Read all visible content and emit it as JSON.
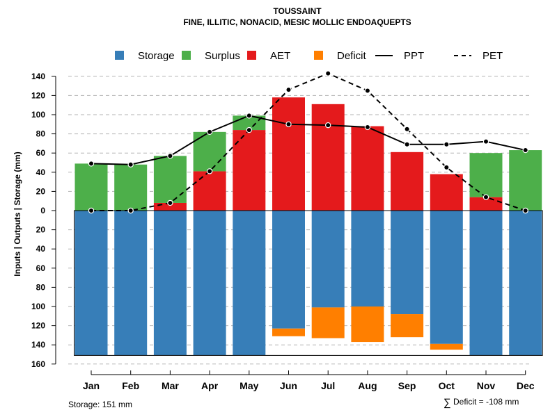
{
  "chart_data": {
    "type": "bar",
    "title": "TOUSSAINT",
    "subtitle": "FINE, ILLITIC, NONACID, MESIC MOLLIC ENDOAQUEPTS",
    "ylabel": "Inputs | Outputs | Storage    (mm)",
    "categories": [
      "Jan",
      "Feb",
      "Mar",
      "Apr",
      "May",
      "Jun",
      "Jul",
      "Aug",
      "Sep",
      "Oct",
      "Nov",
      "Dec"
    ],
    "ylim": [
      -160,
      150
    ],
    "yticks": [
      140,
      120,
      100,
      80,
      60,
      40,
      20,
      0,
      -20,
      -40,
      -60,
      -80,
      -100,
      -120,
      -140,
      -160
    ],
    "ytick_labels": [
      "140",
      "120",
      "100",
      "80",
      "60",
      "40",
      "20",
      "0",
      "20",
      "40",
      "60",
      "80",
      "100",
      "120",
      "140",
      "160"
    ],
    "grid": true,
    "colors": {
      "storage": "#377eb8",
      "surplus": "#4daf4a",
      "aet": "#e41a1c",
      "deficit": "#ff7f00",
      "ppt": "#000000",
      "pet": "#000000"
    },
    "legend": [
      {
        "key": "storage",
        "label": "Storage",
        "kind": "box"
      },
      {
        "key": "surplus",
        "label": "Surplus",
        "kind": "box"
      },
      {
        "key": "aet",
        "label": "AET",
        "kind": "box"
      },
      {
        "key": "deficit",
        "label": "Deficit",
        "kind": "box"
      },
      {
        "key": "ppt",
        "label": "PPT",
        "kind": "solid"
      },
      {
        "key": "pet",
        "label": "PET",
        "kind": "dash"
      }
    ],
    "series": [
      {
        "name": "AET",
        "values": [
          0,
          0,
          8,
          41,
          84,
          118,
          111,
          88,
          61,
          38,
          14,
          0
        ]
      },
      {
        "name": "Surplus",
        "values": [
          49,
          48,
          49,
          41,
          15,
          0,
          0,
          0,
          0,
          0,
          46,
          63
        ]
      },
      {
        "name": "Storage",
        "values": [
          151,
          151,
          151,
          151,
          151,
          123,
          101,
          100,
          108,
          139,
          151,
          151
        ]
      },
      {
        "name": "Deficit",
        "values": [
          0,
          0,
          0,
          0,
          0,
          8,
          32,
          37,
          24,
          6,
          0,
          0
        ]
      },
      {
        "name": "PPT",
        "values": [
          49,
          48,
          57,
          82,
          99,
          90,
          89,
          87,
          69,
          69,
          72,
          63
        ]
      },
      {
        "name": "PET",
        "values": [
          0,
          0,
          8,
          41,
          84,
          126,
          143,
          125,
          85,
          45,
          14,
          0
        ]
      }
    ]
  },
  "annotations": {
    "storage_note": "Storage: 151 mm",
    "sum_symbol": "∑",
    "deficit_note": "Deficit = -108 mm"
  }
}
